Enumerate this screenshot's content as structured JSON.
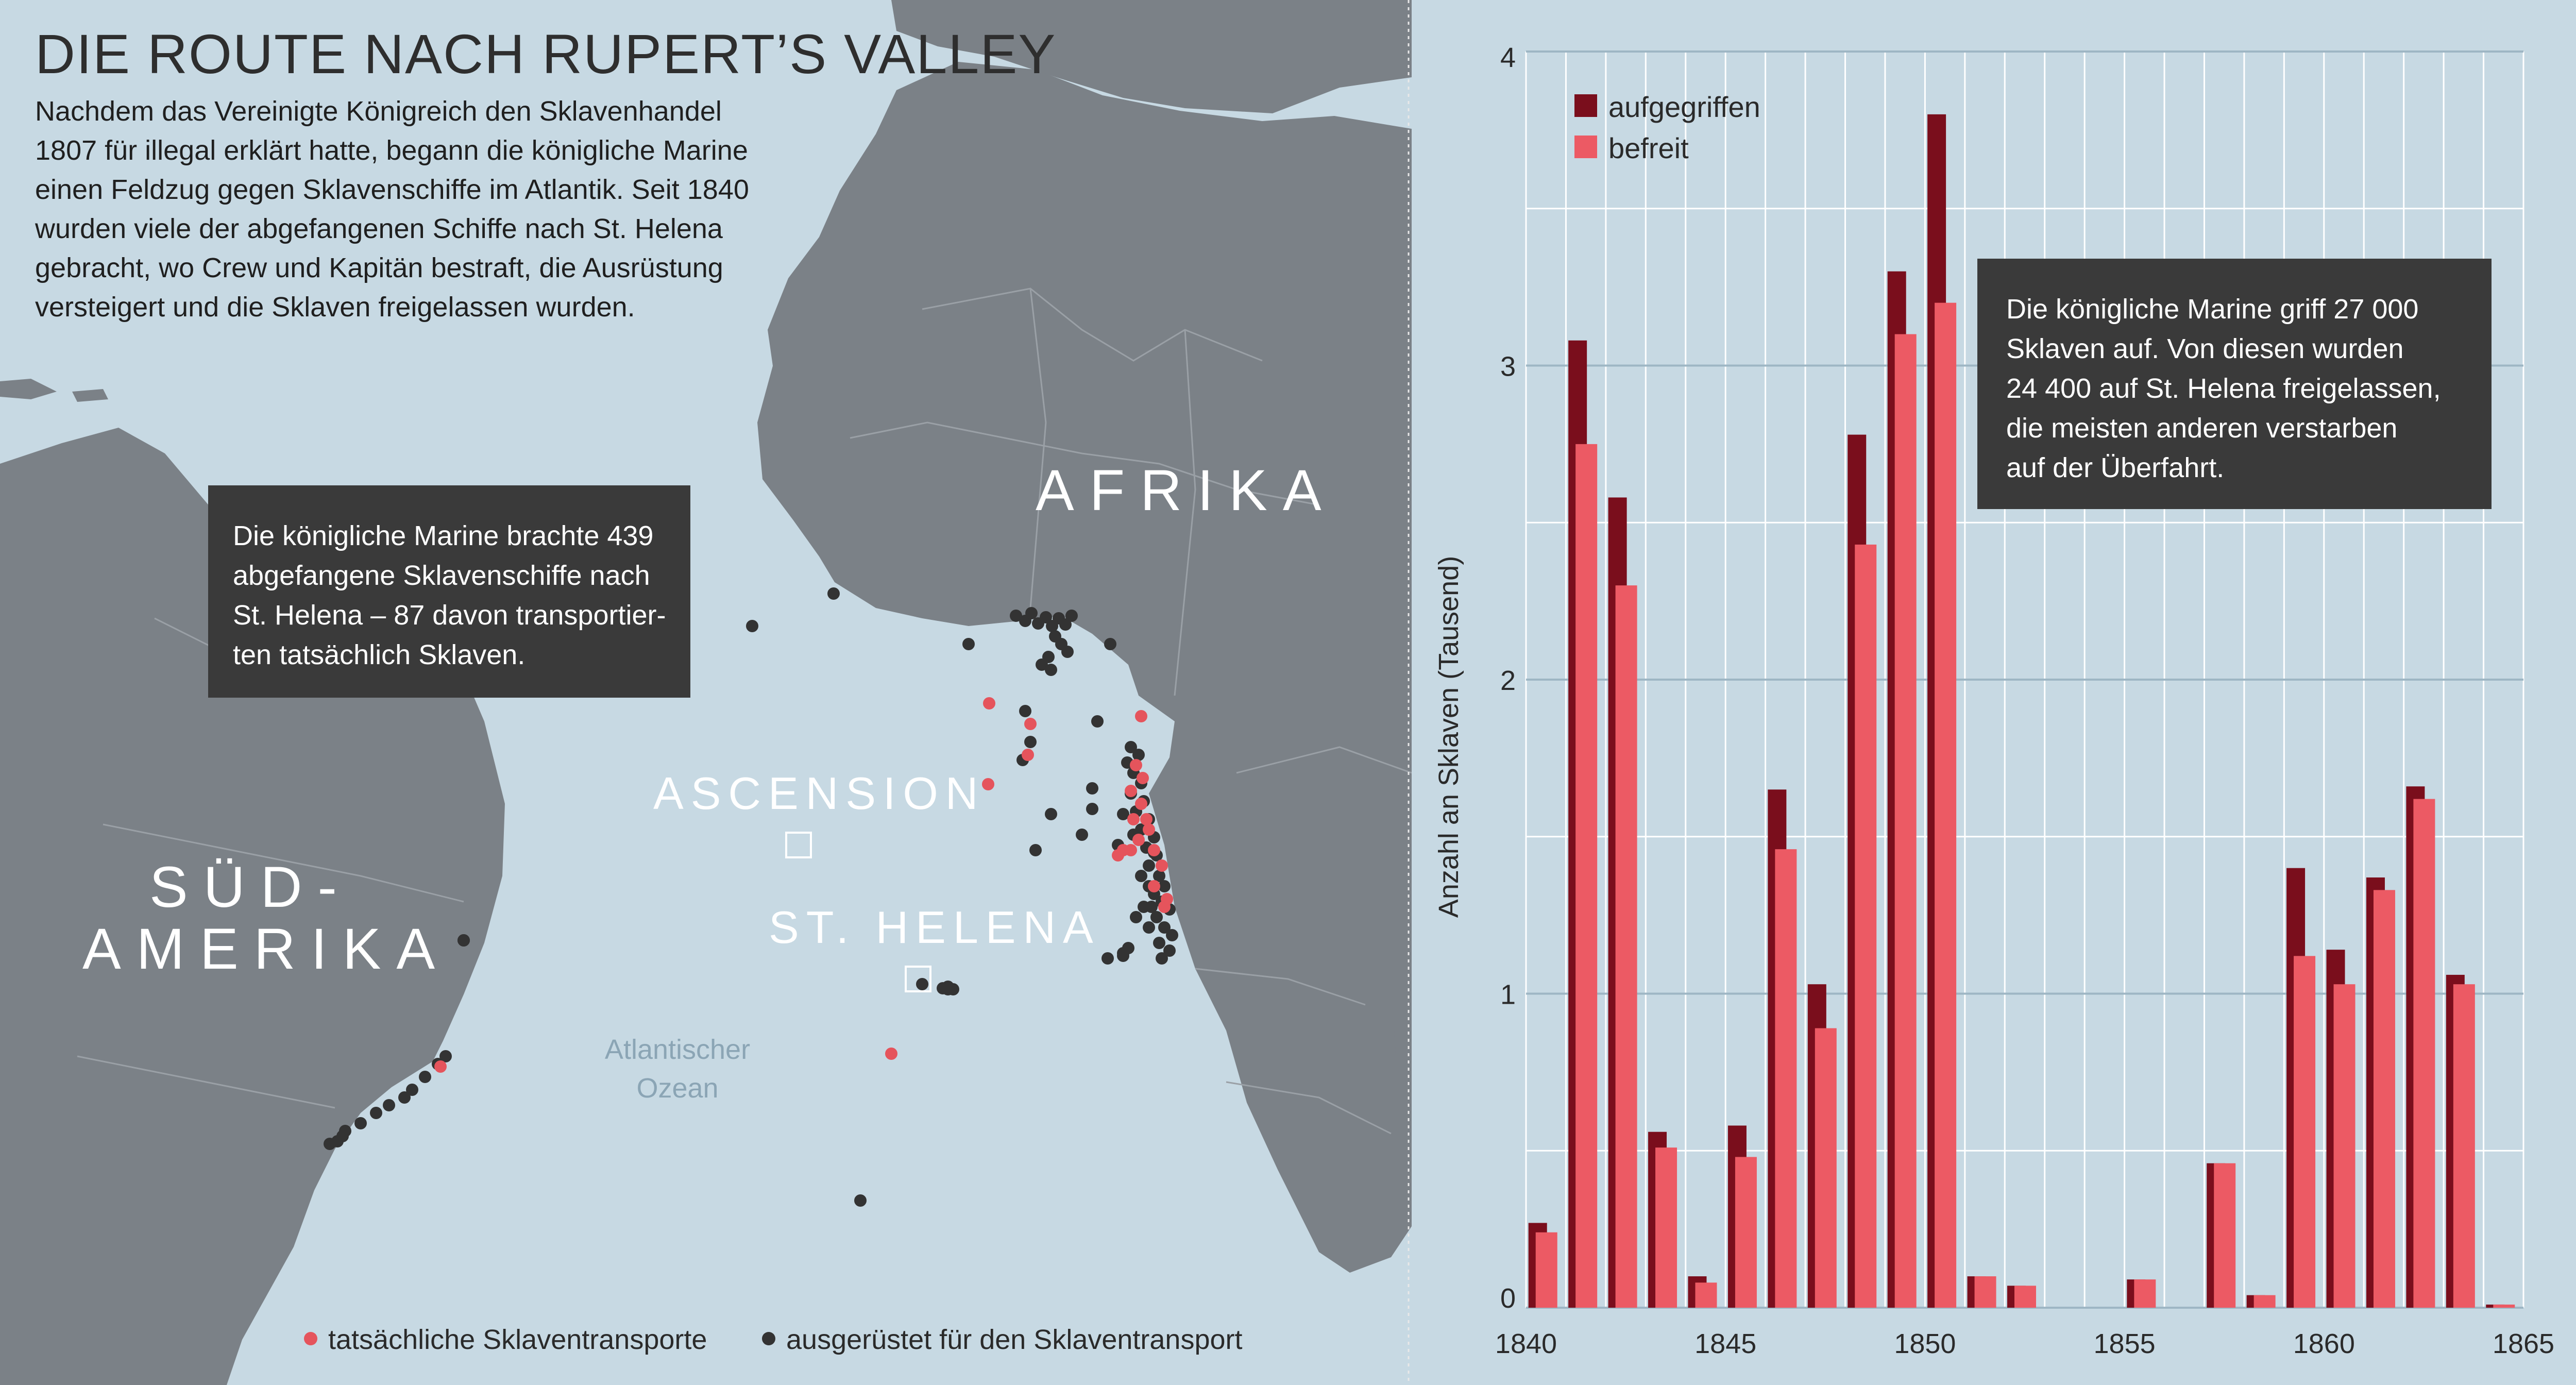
{
  "title": "DIE ROUTE NACH RUPERT’S VALLEY",
  "intro_lines": [
    "Nachdem das Vereinigte Königreich den Sklavenhandel",
    "1807 für illegal erklärt hatte, begann die königliche Marine",
    "einen Feldzug gegen Sklavenschiffe im Atlantik. Seit 1840",
    "wurden viele der abgefangenen Schiffe nach St. Helena",
    "gebracht, wo Crew und Kapitän bestraft, die Ausrüstung",
    "versteigert und die Sklaven freigelassen wurden."
  ],
  "map": {
    "labels": {
      "africa": "AFRIKA",
      "south_america_1": "SÜD-",
      "south_america_2": "AMERIKA",
      "ascension": "ASCENSION",
      "st_helena": "ST. HELENA",
      "ocean_1": "Atlantischer",
      "ocean_2": "Ozean"
    },
    "callout_lines": [
      "Die königliche Marine brachte 439",
      "abgefangene Sklavenschiffe nach",
      "St. Helena – 87 davon transportier-",
      "ten tatsächlich Sklaven."
    ],
    "legend": {
      "red_label": "tatsächliche Sklaventransporte",
      "black_label": "ausgerüstet für den Sklaventransport"
    },
    "colors": {
      "ocean": "#c7d9e3",
      "land": "#7b8187",
      "red_dot": "#e5545c",
      "black_dot": "#333333"
    }
  },
  "chart_callout_lines": [
    "Die königliche Marine griff 27 000",
    "Sklaven auf. Von diesen wurden",
    "24 400 auf St. Helena freigelassen,",
    "die meisten anderen verstarben",
    "auf der Überfahrt."
  ],
  "chart_data": {
    "type": "bar",
    "ylabel": "Anzahl an Sklaven (Tausend)",
    "ylim": [
      0,
      4
    ],
    "xlim": [
      1840,
      1865
    ],
    "yticks": [
      "0",
      "1",
      "2",
      "3",
      "4"
    ],
    "xticks": [
      "1840",
      "1845",
      "1850",
      "1855",
      "1860",
      "1865"
    ],
    "colors": {
      "aufgegriffen": "#7a0e1c",
      "befreit": "#ec5a64"
    },
    "categories": [
      1840,
      1841,
      1842,
      1843,
      1844,
      1845,
      1846,
      1847,
      1848,
      1849,
      1850,
      1851,
      1852,
      1853,
      1854,
      1855,
      1856,
      1857,
      1858,
      1859,
      1860,
      1861,
      1862,
      1863,
      1864
    ],
    "series": [
      {
        "name": "aufgegriffen",
        "values": [
          0.27,
          3.08,
          2.58,
          0.56,
          0.1,
          0.58,
          1.65,
          1.03,
          2.78,
          3.3,
          3.8,
          0.1,
          0.07,
          0,
          0,
          0.09,
          0,
          0.46,
          0.04,
          1.4,
          1.14,
          1.37,
          1.66,
          1.06,
          0.01
        ]
      },
      {
        "name": "befreit",
        "values": [
          0.24,
          2.75,
          2.3,
          0.51,
          0.08,
          0.48,
          1.46,
          0.89,
          2.43,
          3.1,
          3.2,
          0.1,
          0.07,
          0,
          0,
          0.09,
          0,
          0.46,
          0.04,
          1.12,
          1.03,
          1.33,
          1.62,
          1.03,
          0.01
        ]
      }
    ]
  }
}
